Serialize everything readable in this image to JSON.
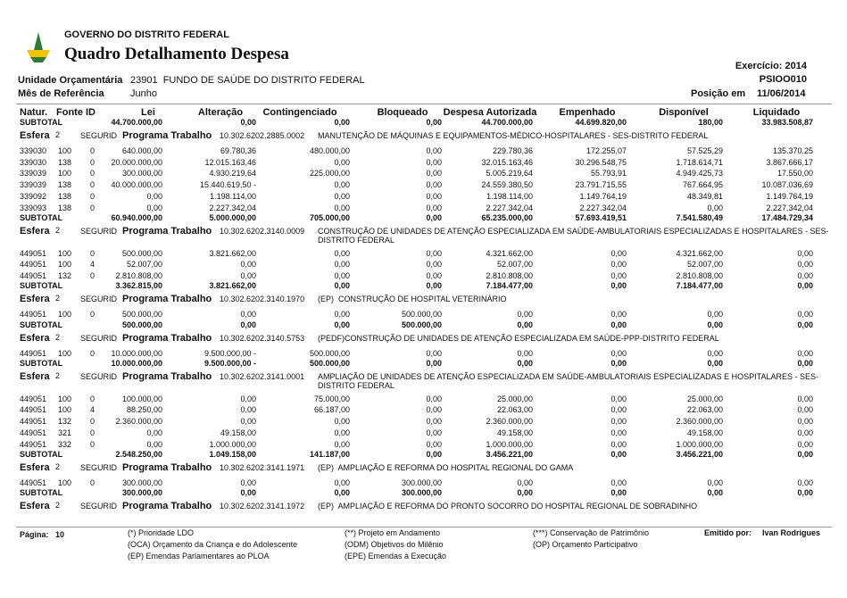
{
  "header": {
    "government": "GOVERNO DO DISTRITO FEDERAL",
    "title": "Quadro Detalhamento Despesa",
    "exercise": "Exercício: 2014",
    "report_code": "PSIOO010",
    "unit_label": "Unidade Orçamentária",
    "unit": "23901  FUNDO DE SAÚDE DO DISTRITO FEDERAL",
    "month_label": "Mês de Referência",
    "month": "Junho",
    "position_label": "Posição em",
    "position": "11/06/2014"
  },
  "table": {
    "columns": [
      "Natur.",
      "Fonte",
      "ID",
      "Lei",
      "Alteração",
      "Contingenciado",
      "Bloqueado",
      "Despesa Autorizada",
      "Empenhado",
      "Disponível",
      "Liquidado"
    ],
    "subtotal_label": "SUBTOTAL",
    "esfera_label": "Esfera",
    "segment": "SEGURID",
    "program_label": "Programa Trabalho",
    "top_subtotal": [
      "44.700.000,00",
      "0,00",
      "0,00",
      "0,00",
      "44.700.000,00",
      "44.699.820,00",
      "180,00",
      "33.983.508,87"
    ],
    "blocks": [
      {
        "esfera": "2",
        "program": "10.302.6202.2885.0002",
        "description": "MANUTENÇÃO DE MÁQUINAS E EQUIPAMENTOS-MÉDICO-HOSPITALARES - SES-DISTRITO FEDERAL",
        "rows": [
          [
            "339030",
            "100",
            "0",
            "640.000,00",
            "69.780,36",
            "480.000,00",
            "0,00",
            "229.780,36",
            "172.255,07",
            "57.525,29",
            "135.370,25"
          ],
          [
            "339030",
            "138",
            "0",
            "20.000.000,00",
            "12.015.163,46",
            "0,00",
            "0,00",
            "32.015.163,46",
            "30.296.548,75",
            "1.718.614,71",
            "3.867.666,17"
          ],
          [
            "339039",
            "100",
            "0",
            "300.000,00",
            "4.930.219,64",
            "225.000,00",
            "0,00",
            "5.005.219,64",
            "55.793,91",
            "4.949.425,73",
            "17.550,00"
          ],
          [
            "339039",
            "138",
            "0",
            "40.000.000,00",
            "15.440.619,50 -",
            "0,00",
            "0,00",
            "24.559.380,50",
            "23.791.715,55",
            "767.664,95",
            "10.087.036,69"
          ],
          [
            "339092",
            "138",
            "0",
            "0,00",
            "1.198.114,00",
            "0,00",
            "0,00",
            "1.198.114,00",
            "1.149.764,19",
            "48.349,81",
            "1.149.764,19"
          ],
          [
            "339093",
            "138",
            "0",
            "0,00",
            "2.227.342,04",
            "0,00",
            "0,00",
            "2.227.342,04",
            "2.227.342,04",
            "0,00",
            "2.227.342,04"
          ]
        ],
        "subtotal": [
          "60.940.000,00",
          "5.000.000,00",
          "705.000,00",
          "0,00",
          "65.235.000,00",
          "57.693.419,51",
          "7.541.580,49",
          "17.484.729,34"
        ]
      },
      {
        "esfera": "2",
        "program": "10.302.6202.3140.0009",
        "description": "CONSTRUÇÃO DE UNIDADES DE ATENÇÃO ESPECIALIZADA EM SAÚDE-AMBULATORIAIS ESPECIALIZADAS E HOSPITALARES - SES-DISTRITO FEDERAL",
        "rows": [
          [
            "449051",
            "100",
            "0",
            "500.000,00",
            "3.821.662,00",
            "0,00",
            "0,00",
            "4.321.662,00",
            "0,00",
            "4.321.662,00",
            "0,00"
          ],
          [
            "449051",
            "100",
            "4",
            "52.007,00",
            "0,00",
            "0,00",
            "0,00",
            "52.007,00",
            "0,00",
            "52.007,00",
            "0,00"
          ],
          [
            "449051",
            "132",
            "0",
            "2.810.808,00",
            "0,00",
            "0,00",
            "0,00",
            "2.810.808,00",
            "0,00",
            "2.810.808,00",
            "0,00"
          ]
        ],
        "subtotal": [
          "3.362.815,00",
          "3.821.662,00",
          "0,00",
          "0,00",
          "7.184.477,00",
          "0,00",
          "7.184.477,00",
          "0,00"
        ]
      },
      {
        "esfera": "2",
        "program": "10.302.6202.3140.1970",
        "description": "(EP)  CONSTRUÇÃO DE HOSPITAL VETERINÁRIO",
        "rows": [
          [
            "449051",
            "100",
            "0",
            "500.000,00",
            "0,00",
            "0,00",
            "500.000,00",
            "0,00",
            "0,00",
            "0,00",
            "0,00"
          ]
        ],
        "subtotal": [
          "500.000,00",
          "0,00",
          "0,00",
          "500.000,00",
          "0,00",
          "0,00",
          "0,00",
          "0,00"
        ]
      },
      {
        "esfera": "2",
        "program": "10.302.6202.3140.5753",
        "description": "(PEDF)CONSTRUÇÃO DE UNIDADES DE ATENÇÃO ESPECIALIZADA EM SAÚDE-PPP-DISTRITO FEDERAL",
        "rows": [
          [
            "449051",
            "100",
            "0",
            "10.000.000,00",
            "9.500.000,00 -",
            "500.000,00",
            "0,00",
            "0,00",
            "0,00",
            "0,00",
            "0,00"
          ]
        ],
        "subtotal": [
          "10.000.000,00",
          "9.500.000,00 -",
          "500.000,00",
          "0,00",
          "0,00",
          "0,00",
          "0,00",
          "0,00"
        ]
      },
      {
        "esfera": "2",
        "program": "10.302.6202.3141.0001",
        "description": "AMPLIAÇÃO DE UNIDADES DE ATENÇÃO ESPECIALIZADA EM SAÚDE-AMBULATORIAIS ESPECIALIZADAS E HOSPITALARES - SES-DISTRITO FEDERAL",
        "rows": [
          [
            "449051",
            "100",
            "0",
            "100.000,00",
            "0,00",
            "75.000,00",
            "0,00",
            "25.000,00",
            "0,00",
            "25.000,00",
            "0,00"
          ],
          [
            "449051",
            "100",
            "4",
            "88.250,00",
            "0,00",
            "66.187,00",
            "0,00",
            "22.063,00",
            "0,00",
            "22.063,00",
            "0,00"
          ],
          [
            "449051",
            "132",
            "0",
            "2.360.000,00",
            "0,00",
            "0,00",
            "0,00",
            "2.360.000,00",
            "0,00",
            "2.360.000,00",
            "0,00"
          ],
          [
            "449051",
            "321",
            "0",
            "0,00",
            "49.158,00",
            "0,00",
            "0,00",
            "49.158,00",
            "0,00",
            "49.158,00",
            "0,00"
          ],
          [
            "449051",
            "332",
            "0",
            "0,00",
            "1.000.000,00",
            "0,00",
            "0,00",
            "1.000.000,00",
            "0,00",
            "1.000.000,00",
            "0,00"
          ]
        ],
        "subtotal": [
          "2.548.250,00",
          "1.049.158,00",
          "141.187,00",
          "0,00",
          "3.456.221,00",
          "0,00",
          "3.456.221,00",
          "0,00"
        ]
      },
      {
        "esfera": "2",
        "program": "10.302.6202.3141.1971",
        "description": "(EP)  AMPLIAÇÃO E REFORMA DO HOSPITAL REGIONAL DO GAMA",
        "rows": [
          [
            "449051",
            "100",
            "0",
            "300.000,00",
            "0,00",
            "0,00",
            "300.000,00",
            "0,00",
            "0,00",
            "0,00",
            "0,00"
          ]
        ],
        "subtotal": [
          "300.000,00",
          "0,00",
          "0,00",
          "300.000,00",
          "0,00",
          "0,00",
          "0,00",
          "0,00"
        ]
      },
      {
        "esfera": "2",
        "program": "10.302.6202.3141.1972",
        "description": "(EP)  AMPLIAÇÃO E REFORMA DO PRONTO SOCORRO DO HOSPITAL REGIONAL DE SOBRADINHO",
        "rows": [],
        "subtotal": []
      }
    ]
  },
  "footer": {
    "page_label": "Página:",
    "page": "10",
    "issued_label": "Emitido por:",
    "issued_by": "Ivan Rodrigues",
    "legend": [
      "(*) Prioridade LDO",
      "(**) Projeto em Andamento",
      "(***) Conservação de Patrimônio",
      "(OCA) Orçamento da Criança e do Adolescente",
      "(ODM) Objetivos do Milênio",
      "(OP) Orçamento Participativo",
      "(EP) Emendas Parlamentares ao PLOA",
      "(EPE) Emendas à Execução"
    ]
  }
}
